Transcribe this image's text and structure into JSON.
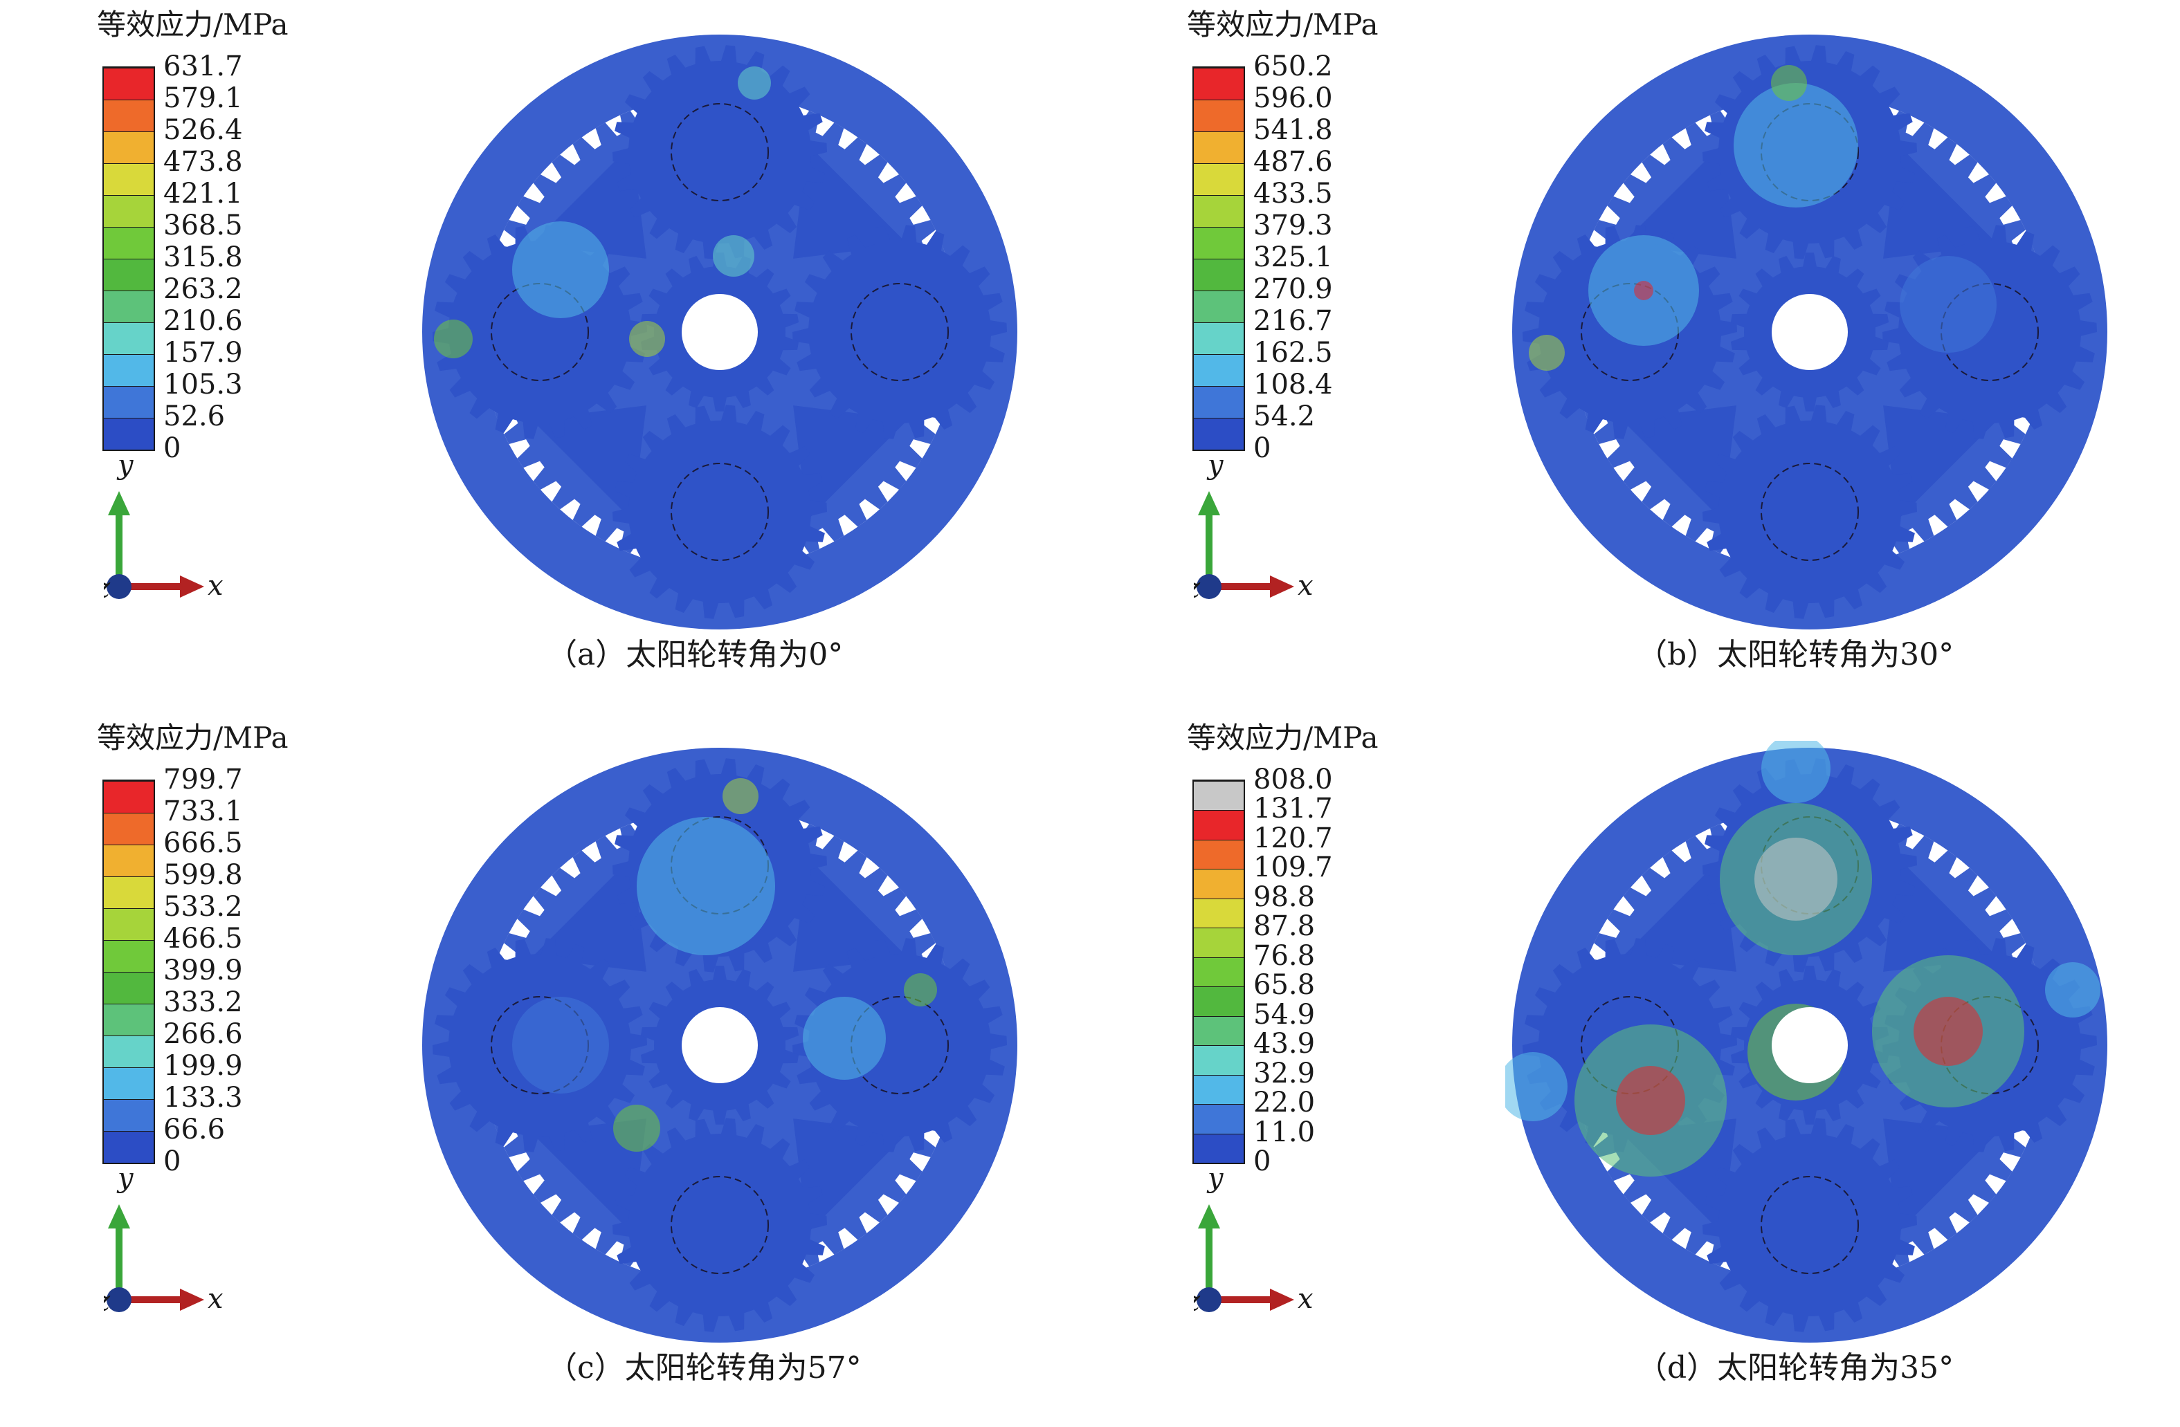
{
  "colors": {
    "ring": "#3a5fcd",
    "gear": "#2f53c8",
    "gap": "#ffffff",
    "scale": [
      "#2c4dc5",
      "#3f76d8",
      "#52b8e8",
      "#66d3c9",
      "#5dc27a",
      "#52b83e",
      "#70c93a",
      "#a6d43a",
      "#d9d93a",
      "#f0b030",
      "#ee6a2a",
      "#e8262a"
    ],
    "scale_d_top": "#c8c8c8",
    "axis_x": "#b22222",
    "axis_y": "#3aa63a",
    "axis_z": "#1f3a8a"
  },
  "axes_labels": {
    "x": "x",
    "y": "y",
    "z": "z"
  },
  "panels": [
    {
      "legend_title": "等效应力/MPa",
      "ticks": [
        "631.7",
        "579.1",
        "526.4",
        "473.8",
        "421.1",
        "368.5",
        "315.8",
        "263.2",
        "210.6",
        "157.9",
        "105.3",
        "52.6",
        "0"
      ],
      "caption": "（a）太阳轮转角为0°"
    },
    {
      "legend_title": "等效应力/MPa",
      "ticks": [
        "650.2",
        "596.0",
        "541.8",
        "487.6",
        "433.5",
        "379.3",
        "325.1",
        "270.9",
        "216.7",
        "162.5",
        "108.4",
        "54.2",
        "0"
      ],
      "caption": "（b）太阳轮转角为30°"
    },
    {
      "legend_title": "等效应力/MPa",
      "ticks": [
        "799.7",
        "733.1",
        "666.5",
        "599.8",
        "533.2",
        "466.5",
        "399.9",
        "333.2",
        "266.6",
        "199.9",
        "133.3",
        "66.6",
        "0"
      ],
      "caption": "（c）太阳轮转角为57°"
    },
    {
      "legend_title": "等效应力/MPa",
      "ticks": [
        "808.0",
        "131.7",
        "120.7",
        "109.7",
        "98.8",
        "87.8",
        "76.8",
        "65.8",
        "54.9",
        "43.9",
        "32.9",
        "22.0",
        "11.0",
        "0"
      ],
      "caption": "（d）太阳轮转角为35°"
    }
  ]
}
